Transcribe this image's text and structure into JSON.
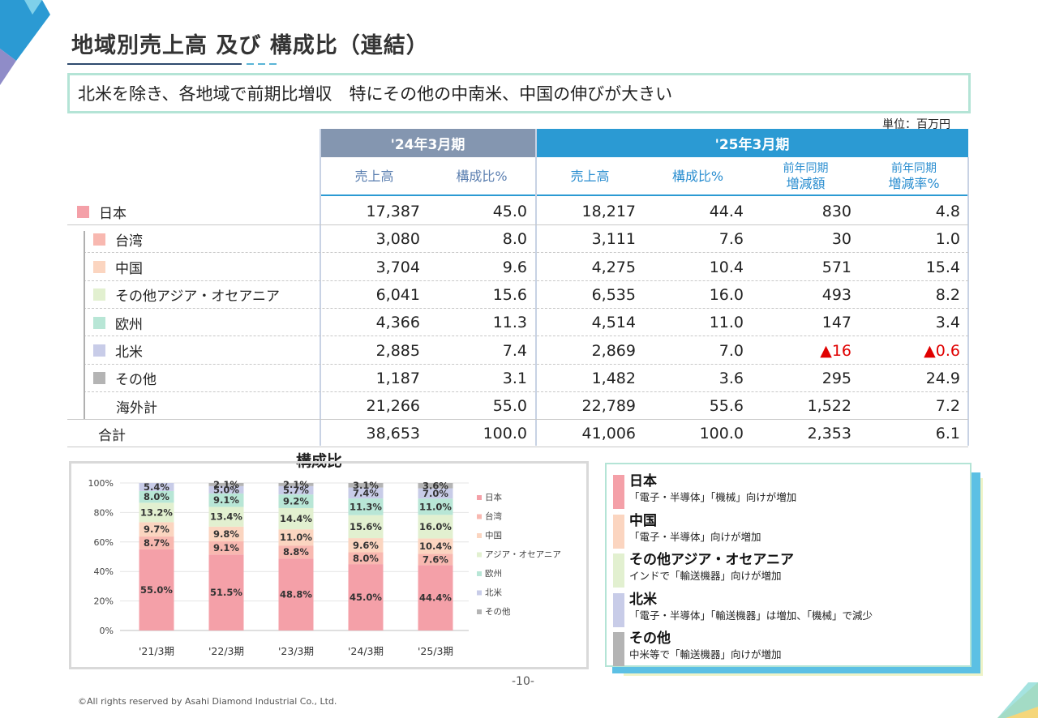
{
  "page": {
    "title": "地域別売上高 及び 構成比（連結）",
    "subtitle": "北米を除き、各地域で前期比増収　特にその他の中南米、中国の伸びが大きい",
    "unit": "単位：百万円",
    "page_number": "-10-",
    "copyright": "©All rights reserved by Asahi Diamond Industrial Co., Ltd."
  },
  "table": {
    "period_24": "'24年3月期",
    "period_25": "'25年3月期",
    "col_sales": "売上高",
    "col_ratio": "構成比%",
    "col_yoy_amount_line1": "前年同期",
    "col_yoy_amount_line2": "増減額",
    "col_yoy_rate_line1": "前年同期",
    "col_yoy_rate_line2": "増減率%",
    "rows": [
      {
        "name": "日本",
        "color": "#f4a0a8",
        "s24": "17,387",
        "r24": "45.0",
        "s25": "18,217",
        "r25": "44.4",
        "diff": "830",
        "rate": "4.8"
      },
      {
        "name": "台湾",
        "color": "#f8b8b0",
        "s24": "3,080",
        "r24": "8.0",
        "s25": "3,111",
        "r25": "7.6",
        "diff": "30",
        "rate": "1.0"
      },
      {
        "name": "中国",
        "color": "#fbd5c0",
        "s24": "3,704",
        "r24": "9.6",
        "s25": "4,275",
        "r25": "10.4",
        "diff": "571",
        "rate": "15.4"
      },
      {
        "name": "その他アジア・オセアニア",
        "color": "#e2f0d0",
        "s24": "6,041",
        "r24": "15.6",
        "s25": "6,535",
        "r25": "16.0",
        "diff": "493",
        "rate": "8.2"
      },
      {
        "name": "欧州",
        "color": "#b8e6d6",
        "s24": "4,366",
        "r24": "11.3",
        "s25": "4,514",
        "r25": "11.0",
        "diff": "147",
        "rate": "3.4"
      },
      {
        "name": "北米",
        "color": "#c8cce8",
        "s24": "2,885",
        "r24": "7.4",
        "s25": "2,869",
        "r25": "7.0",
        "diff": "▲16",
        "rate": "▲0.6"
      },
      {
        "name": "その他",
        "color": "#b4b4b4",
        "s24": "1,187",
        "r24": "3.1",
        "s25": "1,482",
        "r25": "3.6",
        "diff": "295",
        "rate": "24.9"
      },
      {
        "name": "海外計",
        "color": "",
        "s24": "21,266",
        "r24": "55.0",
        "s25": "22,789",
        "r25": "55.6",
        "diff": "1,522",
        "rate": "7.2"
      },
      {
        "name": "合計",
        "color": "",
        "s24": "38,653",
        "r24": "100.0",
        "s25": "41,006",
        "r25": "100.0",
        "diff": "2,353",
        "rate": "6.1"
      }
    ]
  },
  "chart_data": {
    "type": "bar",
    "stacked": true,
    "title": "構成比",
    "categories": [
      "'21/3期",
      "'22/3期",
      "'23/3期",
      "'24/3期",
      "'25/3期"
    ],
    "ylim": [
      0,
      100
    ],
    "yticks": [
      "0%",
      "20%",
      "40%",
      "60%",
      "80%",
      "100%"
    ],
    "legend_position": "right",
    "series": [
      {
        "name": "日本",
        "color": "#f4a0a8",
        "values": [
          55.0,
          51.5,
          48.8,
          45.0,
          44.4
        ]
      },
      {
        "name": "台湾",
        "color": "#f8b8b0",
        "values": [
          8.7,
          9.1,
          8.8,
          8.0,
          7.6
        ]
      },
      {
        "name": "中国",
        "color": "#fbd5c0",
        "values": [
          9.7,
          9.8,
          11.0,
          9.6,
          10.4
        ]
      },
      {
        "name": "アジア・オセアニア",
        "color": "#e2f0d0",
        "values": [
          13.2,
          13.4,
          14.4,
          15.6,
          16.0
        ]
      },
      {
        "name": "欧州",
        "color": "#b8e6d6",
        "values": [
          8.0,
          9.1,
          9.2,
          11.3,
          11.0
        ]
      },
      {
        "name": "北米",
        "color": "#c8cce8",
        "values": [
          5.4,
          5.0,
          5.7,
          7.4,
          7.0
        ]
      },
      {
        "name": "その他",
        "color": "#b4b4b4",
        "values": [
          0.0,
          2.1,
          2.1,
          3.1,
          3.6
        ]
      }
    ],
    "data_labels": [
      [
        "55.0%",
        "8.7%",
        "9.7%",
        "13.2%",
        "8.0%",
        "5.4%",
        ""
      ],
      [
        "51.5%",
        "9.1%",
        "9.8%",
        "13.4%",
        "9.1%",
        "5.0%",
        "2.1%"
      ],
      [
        "48.8%",
        "8.8%",
        "11.0%",
        "14.4%",
        "9.2%",
        "5.7%",
        "2.1%"
      ],
      [
        "45.0%",
        "8.0%",
        "9.6%",
        "15.6%",
        "11.3%",
        "7.4%",
        "3.1%"
      ],
      [
        "44.4%",
        "7.6%",
        "10.4%",
        "16.0%",
        "11.0%",
        "7.0%",
        "3.6%"
      ]
    ]
  },
  "notes": [
    {
      "title": "日本",
      "body": "「電子・半導体」「機械」向けが増加",
      "color": "#f4a0a8"
    },
    {
      "title": "中国",
      "body": "「電子・半導体」向けが増加",
      "color": "#fbd5c0"
    },
    {
      "title": "その他アジア・オセアニア",
      "body": "インドで「輸送機器」向けが増加",
      "color": "#e2f0d0"
    },
    {
      "title": "北米",
      "body": "「電子・半導体」「輸送機器」は増加、「機械」で減少",
      "color": "#c8cce8"
    },
    {
      "title": "その他",
      "body": "中米等で「輸送機器」向けが増加",
      "color": "#b4b4b4"
    }
  ]
}
